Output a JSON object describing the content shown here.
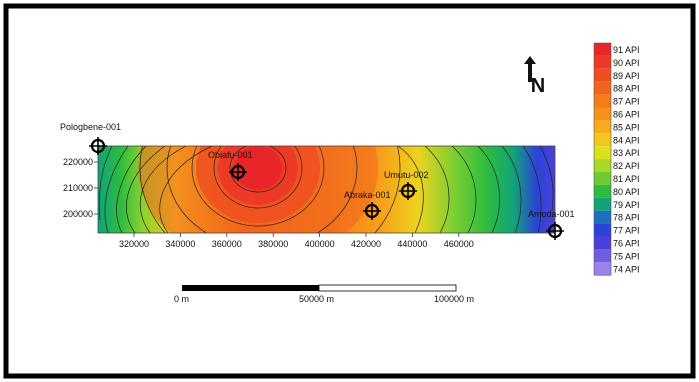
{
  "map": {
    "north_label": "N",
    "x_ticks": [
      "320000",
      "340000",
      "360000",
      "380000",
      "400000",
      "420000",
      "440000",
      "460000"
    ],
    "y_ticks": [
      "220000",
      "210000",
      "200000"
    ],
    "wells": [
      {
        "name": "Pologbene-001"
      },
      {
        "name": "Obiafu-001"
      },
      {
        "name": "Umutu-002"
      },
      {
        "name": "Abraka-001"
      },
      {
        "name": "Amoda-001"
      }
    ],
    "scale_bar": {
      "labels": [
        "0 m",
        "50000 m",
        "100000 m"
      ]
    }
  },
  "legend": {
    "unit": "API",
    "entries": [
      "91 API",
      "90 API",
      "89 API",
      "88 API",
      "87 API",
      "86 API",
      "85 API",
      "84 API",
      "83 API",
      "82 API",
      "81 API",
      "80 API",
      "79 API",
      "78 API",
      "77 API",
      "76 API",
      "75 API",
      "74 API"
    ],
    "colors": [
      "#e8262a",
      "#ec3a26",
      "#ef4e22",
      "#f2641e",
      "#f47c1b",
      "#f6921a",
      "#f7ab1d",
      "#f3c71f",
      "#dbe21c",
      "#a9d827",
      "#6dcb35",
      "#2dbc3f",
      "#12a37a",
      "#1f6fc1",
      "#2b43d6",
      "#4a41d8",
      "#6f5fe0",
      "#9a82ec"
    ]
  }
}
